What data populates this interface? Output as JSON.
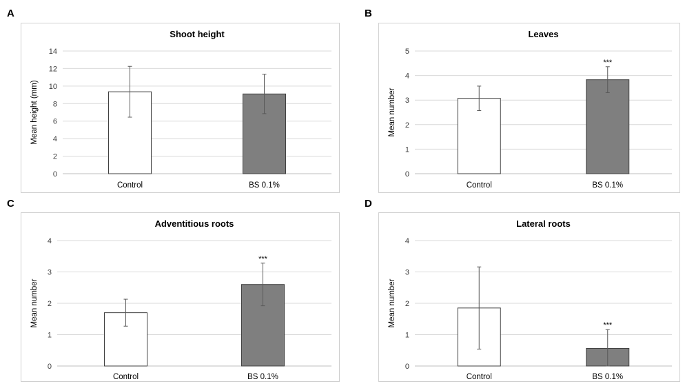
{
  "chart_data": [
    {
      "panel": "A",
      "type": "bar",
      "title": "Shoot height",
      "xlabel": "",
      "ylabel": "Mean height (mm)",
      "ylim": [
        0,
        14
      ],
      "yticks": [
        0,
        2,
        4,
        6,
        8,
        10,
        12,
        14
      ],
      "categories": [
        "Control",
        "BS 0.1%"
      ],
      "values": [
        9.35,
        9.1
      ],
      "error": [
        2.9,
        2.25
      ],
      "annotations": [
        "",
        ""
      ],
      "bar_colors": [
        "#ffffff",
        "#7f7f7f"
      ],
      "grid": true
    },
    {
      "panel": "B",
      "type": "bar",
      "title": "Leaves",
      "xlabel": "",
      "ylabel": "Mean number",
      "ylim": [
        0,
        5
      ],
      "yticks": [
        0,
        1,
        2,
        3,
        4,
        5
      ],
      "categories": [
        "Control",
        "BS 0.1%"
      ],
      "values": [
        3.07,
        3.83
      ],
      "error": [
        0.5,
        0.53
      ],
      "annotations": [
        "",
        "***"
      ],
      "bar_colors": [
        "#ffffff",
        "#7f7f7f"
      ],
      "grid": true
    },
    {
      "panel": "C",
      "type": "bar",
      "title": "Adventitious roots",
      "xlabel": "",
      "ylabel": "Mean number",
      "ylim": [
        0,
        4
      ],
      "yticks": [
        0,
        1,
        2,
        3,
        4
      ],
      "categories": [
        "Control",
        "BS 0.1%"
      ],
      "values": [
        1.7,
        2.6
      ],
      "error": [
        0.43,
        0.68
      ],
      "annotations": [
        "",
        "***"
      ],
      "bar_colors": [
        "#ffffff",
        "#7f7f7f"
      ],
      "grid": true
    },
    {
      "panel": "D",
      "type": "bar",
      "title": "Lateral roots",
      "xlabel": "",
      "ylabel": "Mean number",
      "ylim": [
        0,
        4
      ],
      "yticks": [
        0,
        1,
        2,
        3,
        4
      ],
      "categories": [
        "Control",
        "BS 0.1%"
      ],
      "values": [
        1.85,
        0.56
      ],
      "error": [
        1.31,
        0.6
      ],
      "annotations": [
        "",
        "***"
      ],
      "bar_colors": [
        "#ffffff",
        "#7f7f7f"
      ],
      "grid": true
    }
  ]
}
